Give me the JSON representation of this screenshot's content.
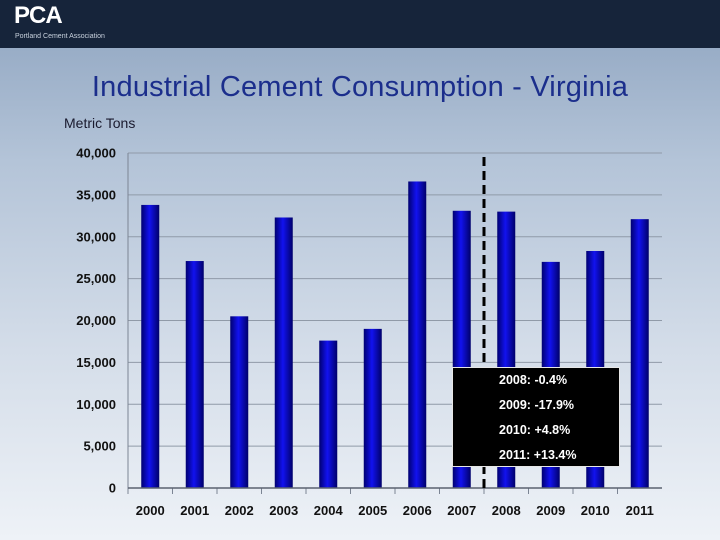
{
  "logo": {
    "text": "PCA",
    "subtitle": "Portland Cement Association"
  },
  "title": "Industrial Cement Consumption - Virginia",
  "units_label": "Metric Tons",
  "colors": {
    "bar": "#1010e8",
    "header": "#16243a",
    "title": "#1b2e8c"
  },
  "chart_data": {
    "type": "bar",
    "categories": [
      "2000",
      "2001",
      "2002",
      "2003",
      "2004",
      "2005",
      "2006",
      "2007",
      "2008",
      "2009",
      "2010",
      "2011"
    ],
    "values": [
      33800,
      27100,
      20500,
      32300,
      17600,
      19000,
      36600,
      33100,
      33000,
      27000,
      28300,
      32100
    ],
    "ylabel": "Metric Tons",
    "ylim": [
      0,
      40000
    ],
    "yticks": [
      0,
      5000,
      10000,
      15000,
      20000,
      25000,
      30000,
      35000,
      40000
    ],
    "ytick_labels": [
      "0",
      "5,000",
      "10,000",
      "15,000",
      "20,000",
      "25,000",
      "30,000",
      "35,000",
      "40,000"
    ],
    "grid": true,
    "divider_between": [
      "2007",
      "2008"
    ],
    "annotations": [
      "2008:  -0.4%",
      "2009: -17.9%",
      "2010: +4.8%",
      "2011:  +13.4%"
    ]
  }
}
